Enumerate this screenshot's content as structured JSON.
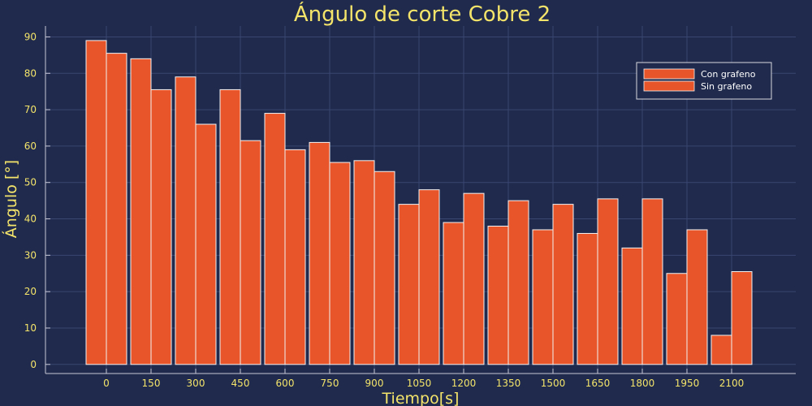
{
  "colors": {
    "background": "#1f2a4d",
    "text": "#f4e46a",
    "bar_fill": "#e8552a",
    "bar_stroke": "#f2f2f2",
    "grid": "#3a4670",
    "axis": "#c8c8d8",
    "legend_text": "#ffffff"
  },
  "chart_data": {
    "type": "bar",
    "title": "Ángulo de corte Cobre 2",
    "xlabel": "Tiempo[s]",
    "ylabel": "Ángulo [°]",
    "categories": [
      "0",
      "150",
      "300",
      "450",
      "600",
      "750",
      "900",
      "1050",
      "1200",
      "1350",
      "1500",
      "1650",
      "1800",
      "1950",
      "2100"
    ],
    "series": [
      {
        "name": "Con grafeno",
        "values": [
          89,
          84,
          79,
          75.5,
          69,
          61,
          56,
          44,
          39,
          38,
          37,
          36,
          32,
          25,
          8
        ]
      },
      {
        "name": "Sin grafeno",
        "values": [
          85.5,
          75.5,
          66,
          61.5,
          59,
          55.5,
          53,
          48,
          47,
          45,
          44,
          45.5,
          45.5,
          37,
          25.5
        ]
      }
    ],
    "yticks": [
      0,
      10,
      20,
      30,
      40,
      50,
      60,
      70,
      80,
      90
    ],
    "ylim": [
      -2.5,
      93
    ],
    "grid": true,
    "legend_position": "top-right"
  }
}
